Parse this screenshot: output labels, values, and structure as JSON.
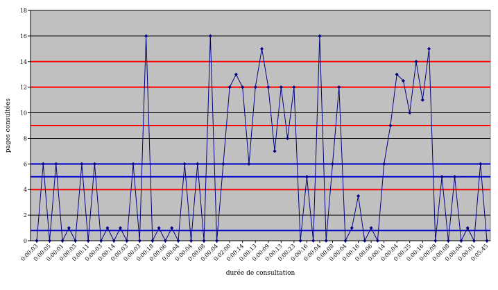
{
  "chart_data": {
    "type": "line",
    "xlabel": "durée de consultation",
    "ylabel": "pages consultées",
    "ylim": [
      0,
      18
    ],
    "yticks": [
      0,
      2,
      4,
      6,
      8,
      10,
      12,
      14,
      16,
      18
    ],
    "grid": true,
    "legend": "none",
    "colors": {
      "plot_background": "#c0c0c0",
      "grid": "#000000",
      "series": "#000080",
      "red_lines": "#ff0000",
      "blue_lines": "#0000cc"
    },
    "reference_lines": [
      {
        "y": 4,
        "color": "#ff0000"
      },
      {
        "y": 9,
        "color": "#ff0000"
      },
      {
        "y": 12,
        "color": "#ff0000"
      },
      {
        "y": 14,
        "color": "#ff0000"
      },
      {
        "y": 0.8,
        "color": "#0000cc"
      },
      {
        "y": 5,
        "color": "#0000cc"
      },
      {
        "y": 6,
        "color": "#0000cc"
      }
    ],
    "x_tick_labels": [
      "0:00:03",
      "0:00:05",
      "0:00:01",
      "0:00:03",
      "0:00:11",
      "0:00:03",
      "0:00:14",
      "0:00:03",
      "0:00:03",
      "0:00:18",
      "0:00:06",
      "0:00:04",
      "0:00:04",
      "0:00:08",
      "0:00:04",
      "0:02:00",
      "0:00:14",
      "0:00:13",
      "0:00:09",
      "0:00:13",
      "0:00:23",
      "0:00:16",
      "0:00:04",
      "0:00:08",
      "0:00:04",
      "0:00:16",
      "0:00:06",
      "0:00:14",
      "0:00:04",
      "0:00:25",
      "0:00:16",
      "0:00:09",
      "0:00:08",
      "0:00:04",
      "0:00:01",
      "0:05:45"
    ],
    "series": [
      {
        "values": [
          0,
          6,
          0,
          6,
          0,
          1,
          0,
          6,
          0,
          6,
          0,
          1,
          0,
          1,
          0,
          6,
          0,
          16,
          0,
          1,
          0,
          1,
          0,
          6,
          0,
          6,
          0,
          16,
          0,
          6,
          12,
          13,
          12,
          6,
          12,
          15,
          12,
          7,
          12,
          8,
          12,
          0,
          5,
          0,
          16,
          0,
          6,
          12,
          0,
          1,
          3.5,
          0,
          1,
          0,
          6,
          9,
          13,
          12.5,
          10,
          14,
          11,
          15,
          0,
          5,
          0,
          5,
          0,
          1,
          0,
          6,
          0
        ]
      }
    ]
  }
}
